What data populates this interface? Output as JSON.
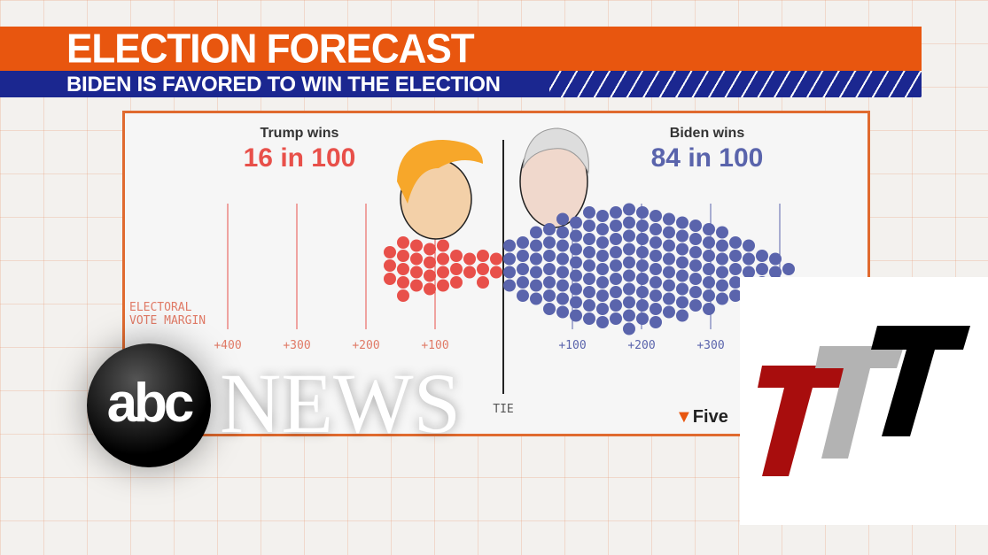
{
  "banner": {
    "title": "ELECTION FORECAST",
    "subtitle": "BIDEN IS FAVORED TO WIN THE ELECTION"
  },
  "chart_data": {
    "type": "scatter",
    "title": "",
    "trump": {
      "label": "Trump wins",
      "odds": "16 in 100",
      "color": "#e8504a",
      "column_counts": [
        2,
        3,
        2,
        3,
        4,
        4,
        4,
        5,
        3
      ]
    },
    "biden": {
      "label": "Biden wins",
      "odds": "84 in 100",
      "color": "#5a64ac",
      "column_counts": [
        4,
        5,
        6,
        7,
        8,
        8,
        9,
        9,
        9,
        10,
        9,
        9,
        8,
        8,
        7,
        7,
        6,
        5,
        4,
        3,
        2,
        1
      ]
    },
    "xlabel": "ELECTORAL VOTE MARGIN",
    "trump_ticks": [
      "+400",
      "+300",
      "+200",
      "+100"
    ],
    "biden_ticks": [
      "+100",
      "+200",
      "+300"
    ],
    "center_label": "TIE"
  },
  "source_logo": "Five",
  "overlays": {
    "network_logo": "abc",
    "network_name": "NEWS",
    "channel_logo": "TTT"
  }
}
